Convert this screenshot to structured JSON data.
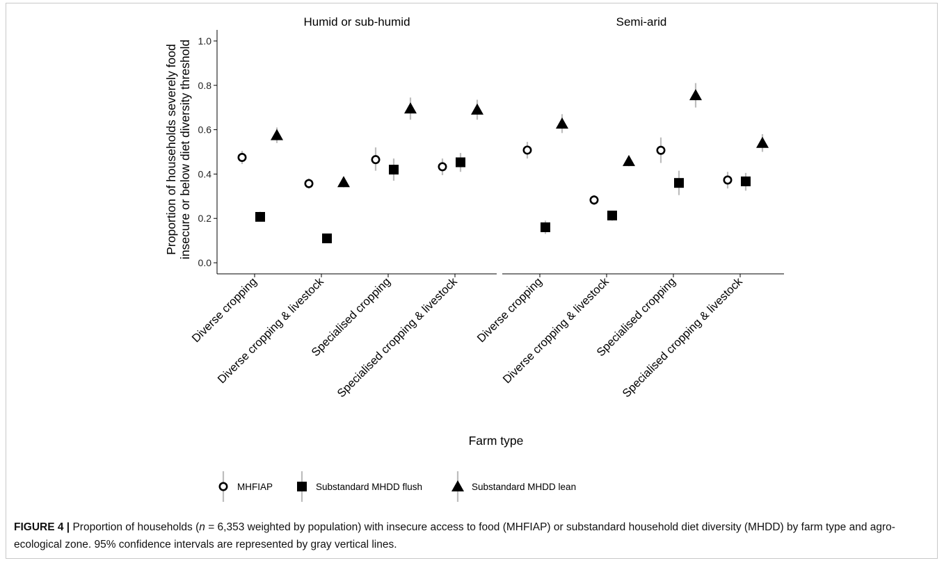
{
  "chart_data": {
    "type": "scatter",
    "panels": [
      "Humid or sub-humid",
      "Semi-arid"
    ],
    "categories": [
      "Diverse cropping",
      "Diverse cropping & livestock",
      "Specialised cropping",
      "Specialised cropping & livestock"
    ],
    "xlabel": "Farm type",
    "ylabel": [
      "Proportion of households severely food",
      "insecure or below diet diversity threshold"
    ],
    "ylim": [
      -0.05,
      1.05
    ],
    "yticks": [
      "0.0",
      "0.2",
      "0.4",
      "0.6",
      "0.8",
      "1.0"
    ],
    "ytick_values": [
      0,
      0.2,
      0.4,
      0.6,
      0.8,
      1.0
    ],
    "legend_position": "bottom",
    "grid": false,
    "colors": {
      "points": "#000000",
      "ci": "#bdbdbd"
    },
    "series": [
      {
        "name": "MHFIAP",
        "marker": "open-circle",
        "panels": [
          {
            "values": [
              0.475,
              0.357,
              0.465,
              0.433
            ],
            "lower": [
              0.445,
              0.335,
              0.415,
              0.395
            ],
            "upper": [
              0.505,
              0.38,
              0.52,
              0.47
            ]
          },
          {
            "values": [
              0.508,
              0.283,
              0.507,
              0.373
            ],
            "lower": [
              0.47,
              0.26,
              0.45,
              0.335
            ],
            "upper": [
              0.545,
              0.305,
              0.565,
              0.41
            ]
          }
        ]
      },
      {
        "name": "Substandard MHDD flush",
        "marker": "filled-square",
        "panels": [
          {
            "values": [
              0.207,
              0.11,
              0.42,
              0.453
            ],
            "lower": [
              0.185,
              0.09,
              0.37,
              0.41
            ],
            "upper": [
              0.23,
              0.13,
              0.47,
              0.495
            ]
          },
          {
            "values": [
              0.16,
              0.213,
              0.36,
              0.367
            ],
            "lower": [
              0.13,
              0.19,
              0.305,
              0.325
            ],
            "upper": [
              0.19,
              0.235,
              0.415,
              0.405
            ]
          }
        ]
      },
      {
        "name": "Substandard MHDD lean",
        "marker": "filled-triangle",
        "panels": [
          {
            "values": [
              0.575,
              0.363,
              0.695,
              0.69
            ],
            "lower": [
              0.54,
              0.34,
              0.645,
              0.645
            ],
            "upper": [
              0.61,
              0.385,
              0.745,
              0.735
            ]
          },
          {
            "values": [
              0.627,
              0.458,
              0.755,
              0.54
            ],
            "lower": [
              0.585,
              0.435,
              0.7,
              0.5
            ],
            "upper": [
              0.67,
              0.48,
              0.81,
              0.58
            ]
          }
        ]
      }
    ]
  },
  "caption": {
    "label": "FIGURE 4 |",
    "text_before_n": "Proportion of households (",
    "n_symbol": "n",
    "text_after_n": " = 6,353 weighted by population) with insecure access to food (MHFIAP) or substandard household diet diversity (MHDD) by farm type and agro-ecological zone. 95% confidence intervals are represented by gray vertical lines."
  }
}
